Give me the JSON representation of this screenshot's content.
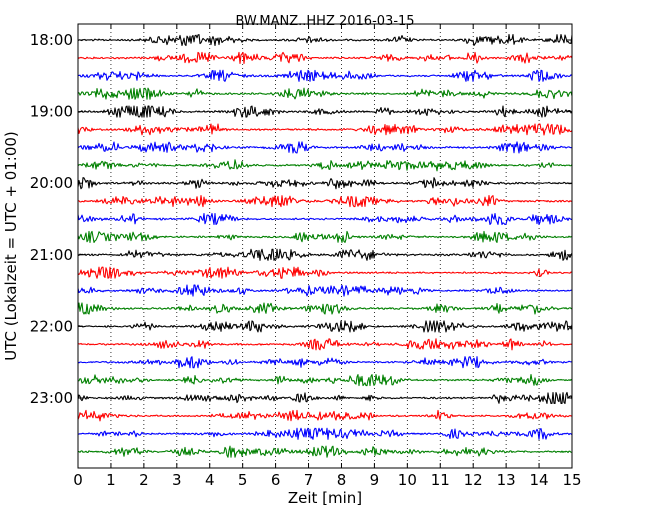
{
  "chart_data": {
    "type": "line",
    "title": "BW.MANZ..HHZ 2016-03-15",
    "xlabel": "Zeit  [min]",
    "ylabel": "UTC (Lokalzeit = UTC + 01:00)",
    "x_range": [
      0,
      15
    ],
    "x_ticks": [
      "0",
      "1",
      "2",
      "3",
      "4",
      "5",
      "6",
      "7",
      "8",
      "9",
      "10",
      "11",
      "12",
      "13",
      "14",
      "15"
    ],
    "y_tick_labels": [
      "18:00",
      "19:00",
      "20:00",
      "21:00",
      "22:00",
      "23:00"
    ],
    "grid": "vertical dotted lines at each minute",
    "trace_colors": [
      "#000000",
      "#ff0000",
      "#0000ff",
      "#008000"
    ],
    "traces": [
      "18:00",
      "18:15",
      "18:30",
      "18:45",
      "19:00",
      "19:15",
      "19:30",
      "19:45",
      "20:00",
      "20:15",
      "20:30",
      "20:45",
      "21:00",
      "21:15",
      "21:30",
      "21:45",
      "22:00",
      "22:15",
      "22:30",
      "22:45",
      "23:00",
      "23:15",
      "23:30",
      "23:45"
    ]
  }
}
